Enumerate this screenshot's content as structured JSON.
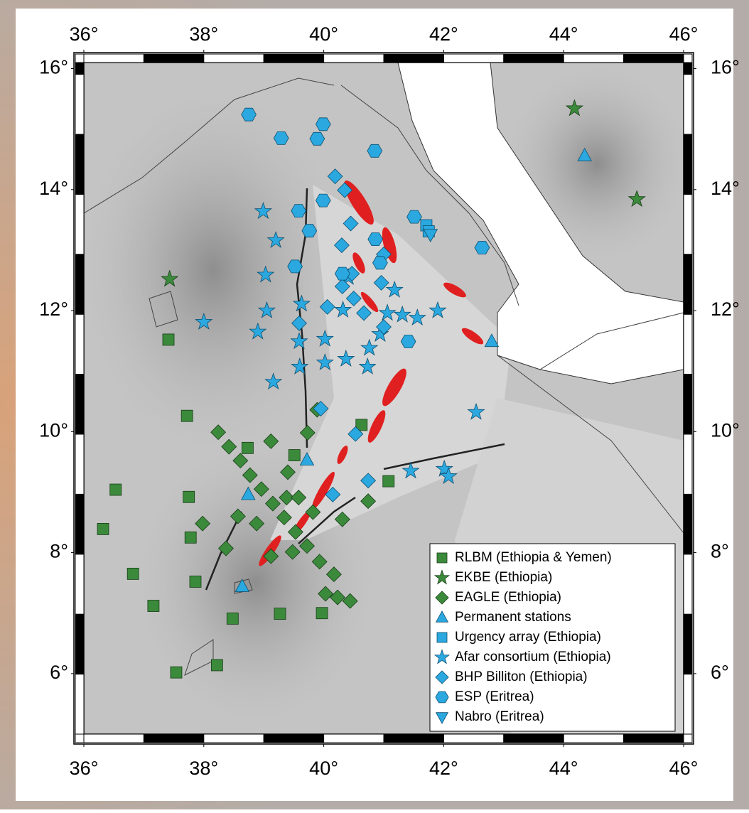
{
  "chart_data": {
    "type": "scatter",
    "xlim": [
      36,
      46
    ],
    "ylim": [
      5,
      16.1
    ],
    "xticks": [
      {
        "value": 36,
        "label": "36°"
      },
      {
        "value": 38,
        "label": "38°"
      },
      {
        "value": 40,
        "label": "40°"
      },
      {
        "value": 42,
        "label": "42°"
      },
      {
        "value": 44,
        "label": "44°"
      },
      {
        "value": 46,
        "label": "46°"
      }
    ],
    "yticks": [
      {
        "value": 6,
        "label": "6°"
      },
      {
        "value": 8,
        "label": "8°"
      },
      {
        "value": 10,
        "label": "10°"
      },
      {
        "value": 12,
        "label": "12°"
      },
      {
        "value": 14,
        "label": "14°"
      },
      {
        "value": 16,
        "label": "16°"
      }
    ],
    "grid": false,
    "legend": "lower right",
    "series": [
      {
        "name": "RLBM (Ethiopia & Yemen)",
        "color": "#3b8a3b",
        "marker": "square",
        "x": [
          37.41,
          37.72,
          36.53,
          37.75,
          36.32,
          37.78,
          36.82,
          37.86,
          37.16,
          37.54,
          38.22,
          38.48,
          39.27,
          39.97,
          39.51,
          38.73,
          41.08,
          40.63
        ],
        "y": [
          11.52,
          10.26,
          9.04,
          8.92,
          8.39,
          8.25,
          7.65,
          7.52,
          7.12,
          6.02,
          6.14,
          6.91,
          6.99,
          7.0,
          9.61,
          9.73,
          9.18,
          10.11
        ]
      },
      {
        "name": "EKBE (Ethiopia)",
        "color": "#3b8a3b",
        "marker": "star",
        "x": [
          37.43,
          44.18,
          45.22
        ],
        "y": [
          12.52,
          15.34,
          13.84
        ]
      },
      {
        "name": "EAGLE (Ethiopia)",
        "color": "#3b8a3b",
        "marker": "diamond",
        "x": [
          38.24,
          38.42,
          38.61,
          38.77,
          38.96,
          39.15,
          39.34,
          39.53,
          39.72,
          39.93,
          40.17,
          40.03,
          40.23,
          40.44,
          39.12,
          39.4,
          39.73,
          39.89,
          37.98,
          38.37,
          38.57,
          38.88,
          39.12,
          39.38,
          39.82,
          40.31,
          40.74,
          39.58,
          39.48
        ],
        "y": [
          9.99,
          9.75,
          9.52,
          9.28,
          9.05,
          8.81,
          8.58,
          8.34,
          8.11,
          7.85,
          7.64,
          7.32,
          7.26,
          7.2,
          9.84,
          9.33,
          9.98,
          10.36,
          8.48,
          8.07,
          8.6,
          8.48,
          7.94,
          8.91,
          8.67,
          8.55,
          8.85,
          8.91,
          8.01
        ]
      },
      {
        "name": "Permanent stations",
        "color": "#2aa8df",
        "marker": "triangle",
        "x": [
          44.35,
          42.8,
          38.64,
          39.72,
          38.74
        ],
        "y": [
          14.56,
          11.49,
          7.44,
          9.53,
          8.96
        ]
      },
      {
        "name": "Urgency array (Ethiopia)",
        "color": "#2aa8df",
        "marker": "square",
        "x": [
          41.71,
          41.75
        ],
        "y": [
          13.41,
          13.31
        ]
      },
      {
        "name": "Afar consortium (Ethiopia)",
        "color": "#2aa8df",
        "marker": "star",
        "x": [
          38.99,
          39.2,
          39.03,
          39.05,
          38.9,
          38.0,
          39.16,
          39.63,
          39.59,
          39.6,
          40.02,
          40.02,
          40.37,
          40.73,
          40.32,
          40.76,
          40.94,
          41.06,
          41.31,
          41.56,
          41.9,
          41.18,
          40.41,
          42.54,
          41.45,
          42.01,
          42.08
        ],
        "y": [
          13.64,
          13.16,
          12.59,
          12.0,
          11.65,
          11.81,
          10.82,
          12.11,
          11.49,
          11.07,
          11.53,
          11.14,
          11.2,
          11.07,
          12.01,
          11.38,
          11.61,
          11.96,
          11.93,
          11.88,
          12.0,
          12.34,
          12.55,
          10.32,
          9.35,
          9.38,
          9.26
        ]
      },
      {
        "name": "BHP Billiton (Ethiopia)",
        "color": "#2aa8df",
        "marker": "diamond",
        "x": [
          40.19,
          40.35,
          40.45,
          40.3,
          40.47,
          40.31,
          40.06,
          40.5,
          41.0,
          40.96,
          40.67,
          41.0,
          40.53,
          40.74,
          40.15,
          39.95,
          39.59
        ],
        "y": [
          14.22,
          13.99,
          13.44,
          13.08,
          12.61,
          12.4,
          12.06,
          12.2,
          12.93,
          12.46,
          11.96,
          11.73,
          9.96,
          9.19,
          8.96,
          10.38,
          11.79
        ]
      },
      {
        "name": "ESP (Eritrea)",
        "color": "#2aa8df",
        "marker": "hexagon",
        "x": [
          38.75,
          39.29,
          39.99,
          39.89,
          40.85,
          39.99,
          39.58,
          39.76,
          39.52,
          40.94,
          40.86,
          41.51,
          42.64,
          41.41,
          40.31
        ],
        "y": [
          15.24,
          14.85,
          15.08,
          14.84,
          14.64,
          13.82,
          13.65,
          13.32,
          12.73,
          12.79,
          13.18,
          13.55,
          13.04,
          11.49,
          12.61
        ]
      },
      {
        "name": "Nabro (Eritrea)",
        "color": "#2aa8df",
        "marker": "triangle-down",
        "x": [
          41.78
        ],
        "y": [
          13.26
        ]
      }
    ]
  }
}
